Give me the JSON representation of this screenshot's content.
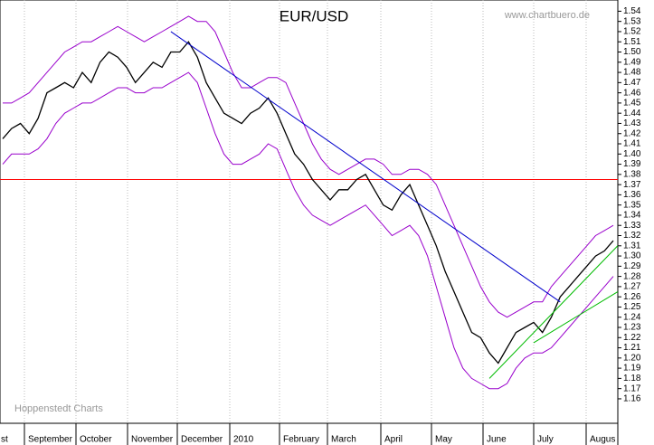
{
  "chart_data": {
    "type": "line",
    "title": "EUR/USD",
    "source": "www.chartbuero.de",
    "credit": "Hoppenstedt Charts",
    "months": [
      "st",
      "September",
      "October",
      "November",
      "December",
      "2010",
      "February",
      "March",
      "April",
      "May",
      "June",
      "July",
      "Augus"
    ],
    "ylim": [
      1.136,
      1.551
    ],
    "yticks": [
      1.16,
      1.17,
      1.18,
      1.19,
      {
        "value": 1.2,
        "label": "1.20"
      },
      1.21,
      1.22,
      1.23,
      1.24,
      1.25,
      1.26,
      1.27,
      1.28,
      1.29,
      {
        "value": 1.3,
        "label": "1.30"
      },
      1.31,
      1.32,
      1.33,
      1.34,
      1.35,
      1.36,
      1.37,
      1.38,
      1.39,
      {
        "value": 1.4,
        "label": "1.40"
      },
      1.41,
      1.42,
      1.43,
      1.44,
      1.45,
      1.46,
      1.47,
      1.48,
      1.49,
      {
        "value": 1.5,
        "label": "1.50"
      },
      1.51,
      1.52,
      1.53,
      1.54
    ],
    "series": [
      {
        "color": "#000000",
        "values": [
          1.415,
          1.425,
          1.43,
          1.42,
          1.435,
          1.46,
          1.465,
          1.47,
          1.465,
          1.48,
          1.47,
          1.49,
          1.5,
          1.495,
          1.485,
          1.47,
          1.48,
          1.49,
          1.485,
          1.5,
          1.5,
          1.51,
          1.495,
          1.47,
          1.455,
          1.44,
          1.435,
          1.43,
          1.44,
          1.445,
          1.455,
          1.44,
          1.42,
          1.4,
          1.39,
          1.375,
          1.365,
          1.355,
          1.365,
          1.365,
          1.375,
          1.38,
          1.365,
          1.35,
          1.345,
          1.36,
          1.37,
          1.35,
          1.33,
          1.31,
          1.285,
          1.265,
          1.245,
          1.225,
          1.22,
          1.205,
          1.195,
          1.21,
          1.225,
          1.23,
          1.235,
          1.225,
          1.24,
          1.26,
          1.27,
          1.28,
          1.29,
          1.3,
          1.305,
          1.315
        ]
      },
      {
        "color": "#9900cc",
        "values": [
          1.45,
          1.45,
          1.455,
          1.46,
          1.47,
          1.48,
          1.49,
          1.5,
          1.505,
          1.51,
          1.51,
          1.515,
          1.52,
          1.525,
          1.52,
          1.515,
          1.51,
          1.515,
          1.52,
          1.525,
          1.53,
          1.535,
          1.53,
          1.53,
          1.52,
          1.5,
          1.48,
          1.465,
          1.465,
          1.47,
          1.475,
          1.475,
          1.47,
          1.45,
          1.43,
          1.41,
          1.395,
          1.385,
          1.38,
          1.385,
          1.39,
          1.395,
          1.395,
          1.39,
          1.38,
          1.38,
          1.385,
          1.385,
          1.38,
          1.37,
          1.35,
          1.33,
          1.31,
          1.29,
          1.27,
          1.255,
          1.245,
          1.24,
          1.245,
          1.25,
          1.255,
          1.255,
          1.27,
          1.28,
          1.29,
          1.3,
          1.31,
          1.32,
          1.325,
          1.33
        ]
      },
      {
        "color": "#9900cc",
        "values": [
          1.39,
          1.4,
          1.4,
          1.4,
          1.405,
          1.415,
          1.43,
          1.44,
          1.445,
          1.45,
          1.45,
          1.455,
          1.46,
          1.465,
          1.465,
          1.46,
          1.46,
          1.465,
          1.465,
          1.47,
          1.475,
          1.48,
          1.47,
          1.445,
          1.42,
          1.4,
          1.39,
          1.39,
          1.395,
          1.4,
          1.41,
          1.405,
          1.385,
          1.365,
          1.35,
          1.34,
          1.335,
          1.33,
          1.335,
          1.34,
          1.345,
          1.35,
          1.34,
          1.33,
          1.32,
          1.325,
          1.33,
          1.32,
          1.3,
          1.27,
          1.24,
          1.21,
          1.19,
          1.18,
          1.175,
          1.17,
          1.17,
          1.175,
          1.19,
          1.2,
          1.205,
          1.205,
          1.21,
          1.22,
          1.23,
          1.24,
          1.25,
          1.26,
          1.27,
          1.28
        ]
      }
    ],
    "hline": {
      "value": 1.375,
      "color": "#ff0000"
    },
    "trendlines": [
      {
        "color": "#0000cc",
        "points": [
          [
            19,
            1.52
          ],
          [
            63,
            1.255
          ]
        ]
      },
      {
        "color": "#00bb00",
        "points": [
          [
            55,
            1.18
          ],
          [
            69.5,
            1.31
          ]
        ]
      },
      {
        "color": "#00bb00",
        "points": [
          [
            60,
            1.215
          ],
          [
            69.5,
            1.265
          ]
        ]
      }
    ]
  }
}
